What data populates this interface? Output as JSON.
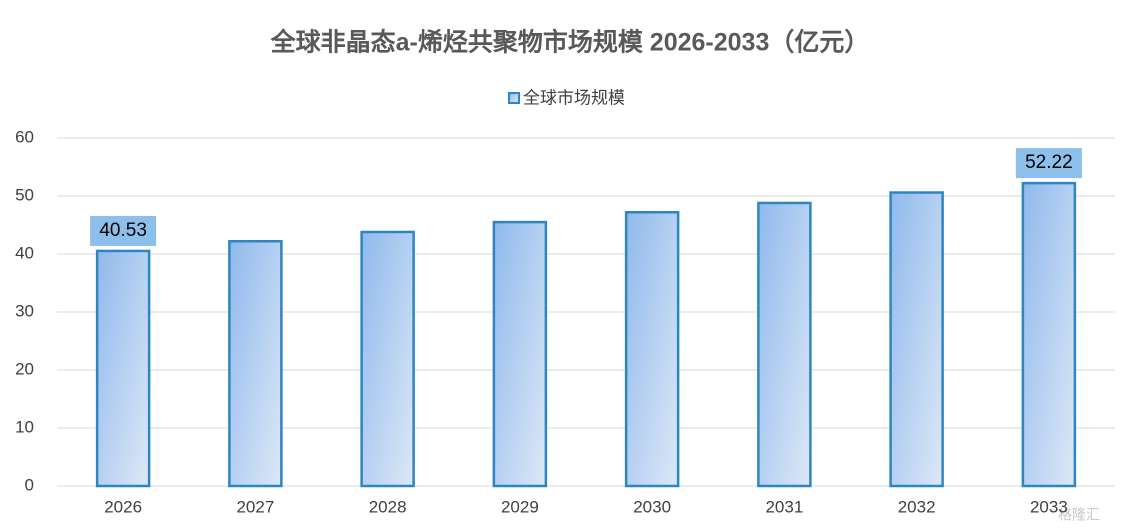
{
  "chart_data": {
    "type": "bar",
    "title": "全球非晶态a-烯烃共聚物市场规模 2026-2033（亿元）",
    "categories": [
      "2026",
      "2027",
      "2028",
      "2029",
      "2030",
      "2031",
      "2032",
      "2033"
    ],
    "series": [
      {
        "name": "全球市场规模",
        "color": "#2e86c1",
        "values": [
          40.53,
          42.2,
          43.8,
          45.5,
          47.2,
          48.8,
          50.6,
          52.22
        ],
        "value_labels": [
          "40.53",
          null,
          null,
          null,
          null,
          null,
          null,
          "52.22"
        ]
      }
    ],
    "ylim": [
      0,
      60
    ],
    "yticks": [
      0,
      10,
      20,
      30,
      40,
      50,
      60
    ],
    "grid": true,
    "legend": "top",
    "watermark": "格隆汇"
  }
}
